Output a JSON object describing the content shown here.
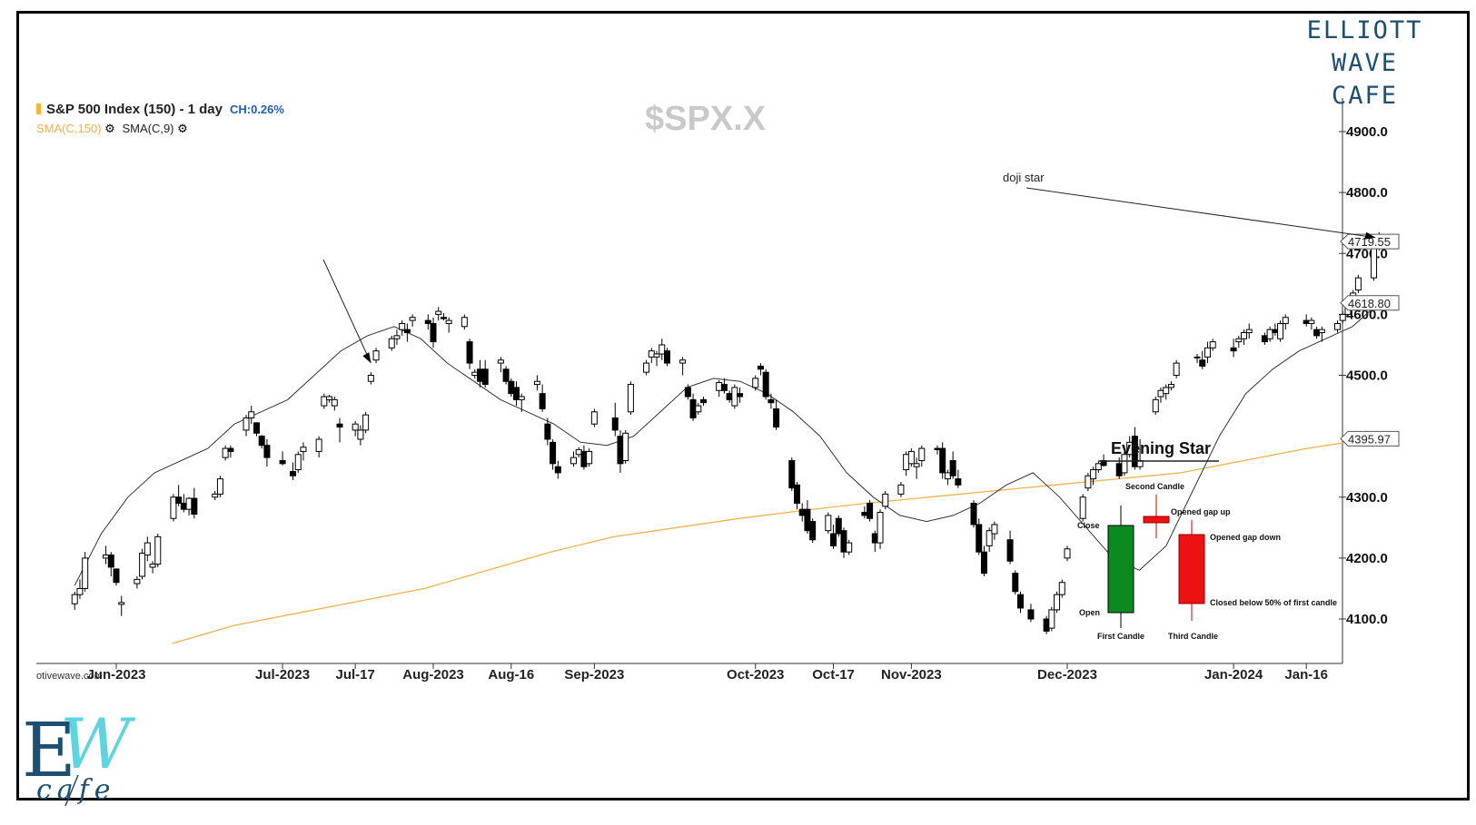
{
  "brand": {
    "line1": "ELLIOTT WAVE",
    "line2": "CAFE",
    "logo_letters": "EW",
    "logo_script": "cafe"
  },
  "header": {
    "title": "S&P 500 Index (150) - 1 day",
    "change": "CH:0.26%",
    "sma150_label": "SMA(C,150)",
    "sma9_label": "SMA(C,9)",
    "symbol": "$SPX.X",
    "settings_icon": "gear-icon"
  },
  "watermark": "otivewave.com",
  "colors": {
    "sma150": "#f2b14c",
    "sma9": "#333333",
    "bear": "#000000",
    "bull": "#ffffff",
    "inset_green": "#0b8a1e",
    "inset_red": "#ee1111",
    "brand": "#1d4f70"
  },
  "chart_data": {
    "type": "candlestick",
    "title": "S&P 500 Index (150) - 1 day",
    "y_axis": {
      "ticks": [
        4100.0,
        4200.0,
        4300.0,
        4500.0,
        4600.0,
        4700.0,
        4800.0,
        4900.0
      ],
      "tick_labels": [
        "4100.0",
        "4200.0",
        "4300.0",
        "4500.0",
        "4600.0",
        "4700.0",
        "4800.0",
        "4900.0"
      ]
    },
    "price_markers": [
      {
        "label": "4719.55",
        "value": 4719.55
      },
      {
        "label": "4618.80",
        "value": 4618.8
      },
      {
        "label": "4395.97",
        "value": 4395.97
      }
    ],
    "x_axis": {
      "labels": [
        {
          "label": "Jun-2023",
          "date": "2023-06-01"
        },
        {
          "label": "Jul-2023",
          "date": "2023-07-03"
        },
        {
          "label": "Jul-17",
          "date": "2023-07-17"
        },
        {
          "label": "Aug-2023",
          "date": "2023-08-01"
        },
        {
          "label": "Aug-16",
          "date": "2023-08-16"
        },
        {
          "label": "Sep-2023",
          "date": "2023-09-01"
        },
        {
          "label": "Oct-2023",
          "date": "2023-10-02"
        },
        {
          "label": "Oct-17",
          "date": "2023-10-17"
        },
        {
          "label": "Nov-2023",
          "date": "2023-11-01"
        },
        {
          "label": "Dec-2023",
          "date": "2023-12-01"
        },
        {
          "label": "Jan-2024",
          "date": "2024-01-02"
        },
        {
          "label": "Jan-16",
          "date": "2024-01-16"
        }
      ]
    },
    "candles_ohlc": [
      [
        "2023-05-24",
        4125,
        4145,
        4115,
        4140
      ],
      [
        "2023-05-25",
        4140,
        4165,
        4133,
        4150
      ],
      [
        "2023-05-26",
        4150,
        4210,
        4145,
        4200
      ],
      [
        "2023-05-30",
        4200,
        4220,
        4190,
        4205
      ],
      [
        "2023-05-31",
        4205,
        4210,
        4170,
        4185
      ],
      [
        "2023-06-01",
        4182,
        4183,
        4155,
        4160
      ],
      [
        "2023-06-02",
        4124,
        4138,
        4105,
        4127
      ],
      [
        "2023-06-05",
        4158,
        4170,
        4150,
        4165
      ],
      [
        "2023-06-06",
        4170,
        4215,
        4165,
        4208
      ],
      [
        "2023-06-07",
        4205,
        4235,
        4195,
        4225
      ],
      [
        "2023-06-08",
        4185,
        4195,
        4175,
        4190
      ],
      [
        "2023-06-09",
        4190,
        4240,
        4185,
        4235
      ],
      [
        "2023-06-12",
        4265,
        4305,
        4260,
        4300
      ],
      [
        "2023-06-13",
        4300,
        4320,
        4285,
        4290
      ],
      [
        "2023-06-14",
        4290,
        4305,
        4275,
        4280
      ],
      [
        "2023-06-15",
        4280,
        4300,
        4270,
        4298
      ],
      [
        "2023-06-16",
        4298,
        4315,
        4265,
        4272
      ],
      [
        "2023-06-20",
        4300,
        4310,
        4295,
        4305
      ],
      [
        "2023-06-21",
        4305,
        4335,
        4300,
        4330
      ],
      [
        "2023-06-22",
        4365,
        4385,
        4360,
        4380
      ],
      [
        "2023-06-23",
        4380,
        4385,
        4365,
        4375
      ],
      [
        "2023-06-26",
        4410,
        4435,
        4400,
        4430
      ],
      [
        "2023-06-27",
        4430,
        4450,
        4420,
        4440
      ],
      [
        "2023-06-28",
        4422,
        4423,
        4400,
        4405
      ],
      [
        "2023-06-29",
        4400,
        4402,
        4380,
        4385
      ],
      [
        "2023-06-30",
        4385,
        4395,
        4350,
        4365
      ],
      [
        "2023-07-03",
        4360,
        4375,
        4352,
        4355
      ],
      [
        "2023-07-05",
        4342,
        4357,
        4328,
        4335
      ],
      [
        "2023-07-06",
        4345,
        4375,
        4340,
        4370
      ],
      [
        "2023-07-07",
        4375,
        4390,
        4360,
        4382
      ],
      [
        "2023-07-10",
        4375,
        4400,
        4365,
        4395
      ],
      [
        "2023-07-11",
        4450,
        4470,
        4445,
        4465
      ],
      [
        "2023-07-12",
        4460,
        4468,
        4455,
        4465
      ],
      [
        "2023-07-13",
        4450,
        4465,
        4442,
        4460
      ],
      [
        "2023-07-14",
        4420,
        4430,
        4390,
        4415
      ],
      [
        "2023-07-17",
        4410,
        4425,
        4400,
        4420
      ],
      [
        "2023-07-18",
        4395,
        4418,
        4385,
        4410
      ],
      [
        "2023-07-19",
        4410,
        4440,
        4405,
        4435
      ],
      [
        "2023-07-20",
        4490,
        4505,
        4485,
        4500
      ],
      [
        "2023-07-21",
        4525,
        4545,
        4520,
        4540
      ],
      [
        "2023-07-24",
        4545,
        4565,
        4540,
        4560
      ],
      [
        "2023-07-25",
        4560,
        4575,
        4550,
        4565
      ],
      [
        "2023-07-26",
        4575,
        4590,
        4565,
        4585
      ],
      [
        "2023-07-27",
        4575,
        4585,
        4555,
        4570
      ],
      [
        "2023-07-28",
        4590,
        4600,
        4580,
        4595
      ],
      [
        "2023-07-31",
        4590,
        4600,
        4575,
        4585
      ],
      [
        "2023-08-01",
        4585,
        4595,
        4545,
        4555
      ],
      [
        "2023-08-02",
        4600,
        4612,
        4590,
        4605
      ],
      [
        "2023-08-03",
        4595,
        4602,
        4590,
        4593
      ],
      [
        "2023-08-04",
        4585,
        4595,
        4570,
        4590
      ],
      [
        "2023-08-07",
        4580,
        4600,
        4575,
        4595
      ],
      [
        "2023-08-08",
        4555,
        4560,
        4510,
        4520
      ],
      [
        "2023-08-09",
        4500,
        4510,
        4495,
        4505
      ],
      [
        "2023-08-10",
        4510,
        4525,
        4480,
        4490
      ],
      [
        "2023-08-11",
        4510,
        4525,
        4480,
        4485
      ],
      [
        "2023-08-14",
        4520,
        4530,
        4505,
        4525
      ],
      [
        "2023-08-15",
        4510,
        4515,
        4485,
        4490
      ],
      [
        "2023-08-16",
        4490,
        4495,
        4465,
        4470
      ],
      [
        "2023-08-17",
        4480,
        4490,
        4450,
        4460
      ],
      [
        "2023-08-18",
        4460,
        4470,
        4440,
        4465
      ],
      [
        "2023-08-21",
        4485,
        4500,
        4475,
        4490
      ],
      [
        "2023-08-22",
        4470,
        4485,
        4440,
        4445
      ],
      [
        "2023-08-23",
        4420,
        4430,
        4385,
        4395
      ],
      [
        "2023-08-24",
        4390,
        4395,
        4345,
        4355
      ],
      [
        "2023-08-25",
        4350,
        4360,
        4330,
        4340
      ],
      [
        "2023-08-28",
        4355,
        4375,
        4350,
        4365
      ],
      [
        "2023-08-29",
        4370,
        4382,
        4365,
        4378
      ],
      [
        "2023-08-30",
        4375,
        4385,
        4345,
        4350
      ],
      [
        "2023-08-31",
        4355,
        4380,
        4350,
        4375
      ],
      [
        "2023-09-01",
        4420,
        4445,
        4415,
        4440
      ],
      [
        "2023-09-05",
        4430,
        4455,
        4400,
        4410
      ],
      [
        "2023-09-06",
        4400,
        4410,
        4340,
        4355
      ],
      [
        "2023-09-07",
        4360,
        4410,
        4355,
        4405
      ],
      [
        "2023-09-08",
        4440,
        4490,
        4435,
        4485
      ],
      [
        "2023-09-11",
        4505,
        4525,
        4500,
        4520
      ],
      [
        "2023-09-12",
        4530,
        4545,
        4520,
        4540
      ],
      [
        "2023-09-13",
        4530,
        4540,
        4515,
        4535
      ],
      [
        "2023-09-14",
        4535,
        4560,
        4525,
        4550
      ],
      [
        "2023-09-15",
        4540,
        4545,
        4515,
        4520
      ],
      [
        "2023-09-18",
        4520,
        4530,
        4500,
        4525
      ],
      [
        "2023-09-19",
        4480,
        4485,
        4460,
        4465
      ],
      [
        "2023-09-20",
        4460,
        4470,
        4425,
        4430
      ],
      [
        "2023-09-21",
        4440,
        4455,
        4435,
        4450
      ],
      [
        "2023-09-22",
        4460,
        4465,
        4450,
        4455
      ],
      [
        "2023-09-25",
        4475,
        4492,
        4465,
        4488
      ],
      [
        "2023-09-26",
        4485,
        4495,
        4470,
        4475
      ],
      [
        "2023-09-27",
        4470,
        4475,
        4455,
        4460
      ],
      [
        "2023-09-28",
        4450,
        4485,
        4445,
        4480
      ],
      [
        "2023-09-29",
        4470,
        4480,
        4455,
        4465
      ],
      [
        "2023-10-02",
        4480,
        4500,
        4475,
        4495
      ],
      [
        "2023-10-03",
        4515,
        4520,
        4500,
        4510
      ],
      [
        "2023-10-04",
        4505,
        4510,
        4460,
        4465
      ],
      [
        "2023-10-05",
        4460,
        4470,
        4445,
        4455
      ],
      [
        "2023-10-06",
        4445,
        4460,
        4410,
        4415
      ],
      [
        "2023-10-09",
        4360,
        4365,
        4310,
        4315
      ],
      [
        "2023-10-10",
        4320,
        4325,
        4280,
        4290
      ],
      [
        "2023-10-11",
        4280,
        4290,
        4260,
        4270
      ],
      [
        "2023-10-12",
        4280,
        4295,
        4240,
        4245
      ],
      [
        "2023-10-13",
        4260,
        4265,
        4225,
        4230
      ],
      [
        "2023-10-16",
        4245,
        4275,
        4240,
        4270
      ],
      [
        "2023-10-17",
        4240,
        4255,
        4215,
        4220
      ],
      [
        "2023-10-18",
        4265,
        4270,
        4235,
        4240
      ],
      [
        "2023-10-19",
        4245,
        4250,
        4200,
        4210
      ],
      [
        "2023-10-20",
        4210,
        4230,
        4205,
        4225
      ],
      [
        "2023-10-23",
        4275,
        4285,
        4265,
        4270
      ],
      [
        "2023-10-24",
        4290,
        4295,
        4260,
        4265
      ],
      [
        "2023-10-25",
        4240,
        4245,
        4210,
        4225
      ],
      [
        "2023-10-26",
        4225,
        4280,
        4215,
        4275
      ],
      [
        "2023-10-27",
        4285,
        4310,
        4280,
        4305
      ],
      [
        "2023-10-30",
        4305,
        4325,
        4300,
        4320
      ],
      [
        "2023-10-31",
        4345,
        4375,
        4335,
        4370
      ],
      [
        "2023-11-01",
        4355,
        4380,
        4350,
        4375
      ],
      [
        "2023-11-02",
        4350,
        4365,
        4330,
        4355
      ],
      [
        "2023-11-03",
        4360,
        4385,
        4350,
        4380
      ],
      [
        "2023-11-06",
        4380,
        4385,
        4370,
        4378
      ],
      [
        "2023-11-07",
        4380,
        4390,
        4330,
        4340
      ],
      [
        "2023-11-08",
        4330,
        4345,
        4320,
        4340
      ],
      [
        "2023-11-09",
        4360,
        4375,
        4330,
        4335
      ],
      [
        "2023-11-10",
        4330,
        4345,
        4315,
        4320
      ],
      [
        "2023-11-13",
        4290,
        4295,
        4250,
        4255
      ],
      [
        "2023-11-14",
        4255,
        4265,
        4205,
        4210
      ],
      [
        "2023-11-15",
        4210,
        4220,
        4170,
        4175
      ],
      [
        "2023-11-16",
        4220,
        4250,
        4210,
        4245
      ],
      [
        "2023-11-17",
        4240,
        4260,
        4230,
        4255
      ],
      [
        "2023-11-20",
        4230,
        4245,
        4190,
        4195
      ],
      [
        "2023-11-21",
        4175,
        4180,
        4140,
        4145
      ],
      [
        "2023-11-22",
        4140,
        4145,
        4110,
        4118
      ],
      [
        "2023-11-24",
        4115,
        4125,
        4095,
        4100
      ],
      [
        "2023-11-27",
        4100,
        4105,
        4075,
        4080
      ],
      [
        "2023-11-28",
        4085,
        4120,
        4080,
        4115
      ],
      [
        "2023-11-29",
        4115,
        4145,
        4110,
        4140
      ],
      [
        "2023-11-30",
        4140,
        4165,
        4135,
        4160
      ],
      [
        "2023-12-01",
        4200,
        4220,
        4195,
        4215
      ],
      [
        "2023-12-04",
        4265,
        4305,
        4260,
        4300
      ],
      [
        "2023-12-05",
        4315,
        4340,
        4310,
        4335
      ],
      [
        "2023-12-06",
        4330,
        4350,
        4320,
        4345
      ],
      [
        "2023-12-07",
        4345,
        4360,
        4340,
        4355
      ],
      [
        "2023-12-08",
        4360,
        4370,
        4350,
        4352
      ],
      [
        "2023-12-11",
        4355,
        4365,
        4330,
        4335
      ],
      [
        "2023-12-12",
        4340,
        4375,
        4335,
        4370
      ],
      [
        "2023-12-13",
        4370,
        4400,
        4365,
        4390
      ],
      [
        "2023-12-14",
        4400,
        4415,
        4345,
        4350
      ],
      [
        "2023-12-15",
        4350,
        4395,
        4345,
        4360
      ],
      [
        "2023-12-18",
        4440,
        4465,
        4435,
        4460
      ],
      [
        "2023-12-19",
        4465,
        4480,
        4455,
        4475
      ],
      [
        "2023-12-20",
        4470,
        4485,
        4460,
        4480
      ],
      [
        "2023-12-21",
        4480,
        4490,
        4475,
        4485
      ],
      [
        "2023-12-22",
        4500,
        4525,
        4495,
        4520
      ],
      [
        "2023-12-26",
        4530,
        4535,
        4520,
        4530
      ],
      [
        "2023-12-27",
        4525,
        4540,
        4510,
        4515
      ],
      [
        "2023-12-28",
        4530,
        4555,
        4520,
        4545
      ],
      [
        "2023-12-29",
        4545,
        4560,
        4540,
        4555
      ],
      [
        "2024-01-02",
        4545,
        4560,
        4530,
        4540
      ],
      [
        "2024-01-03",
        4555,
        4565,
        4545,
        4560
      ],
      [
        "2024-01-04",
        4560,
        4575,
        4550,
        4570
      ],
      [
        "2024-01-05",
        4570,
        4585,
        4560,
        4575
      ],
      [
        "2024-01-08",
        4565,
        4570,
        4550,
        4555
      ],
      [
        "2024-01-09",
        4560,
        4580,
        4555,
        4575
      ],
      [
        "2024-01-10",
        4575,
        4585,
        4565,
        4570
      ],
      [
        "2024-01-11",
        4560,
        4590,
        4555,
        4585
      ],
      [
        "2024-01-12",
        4585,
        4600,
        4575,
        4595
      ],
      [
        "2024-01-16",
        4590,
        4600,
        4580,
        4585
      ],
      [
        "2024-01-17",
        4585,
        4595,
        4575,
        4590
      ],
      [
        "2024-01-18",
        4575,
        4580,
        4560,
        4565
      ],
      [
        "2024-01-19",
        4570,
        4580,
        4555,
        4575
      ],
      [
        "2024-01-22",
        4575,
        4590,
        4570,
        4585
      ],
      [
        "2024-01-23",
        4590,
        4605,
        4585,
        4600
      ],
      [
        "2024-01-24",
        4600,
        4620,
        4595,
        4615
      ],
      [
        "2024-01-25",
        4615,
        4640,
        4610,
        4635
      ],
      [
        "2024-01-26",
        4640,
        4665,
        4635,
        4660
      ],
      [
        "2024-01-29",
        4660,
        4720,
        4655,
        4715
      ],
      [
        "2024-01-30",
        4720,
        4735,
        4705,
        4719.55
      ]
    ],
    "sma9": [
      4155,
      4240,
      4300,
      4340,
      4360,
      4380,
      4420,
      4440,
      4460,
      4500,
      4540,
      4565,
      4580,
      4560,
      4520,
      4490,
      4460,
      4440,
      4420,
      4390,
      4385,
      4400,
      4440,
      4480,
      4495,
      4490,
      4470,
      4440,
      4400,
      4340,
      4300,
      4270,
      4260,
      4270,
      4290,
      4320,
      4340,
      4300,
      4250,
      4200,
      4180,
      4220,
      4310,
      4400,
      4470,
      4510,
      4540,
      4560,
      4580,
      4618.8
    ],
    "sma150": [
      4060,
      4090,
      4110,
      4130,
      4150,
      4180,
      4210,
      4235,
      4250,
      4265,
      4278,
      4290,
      4300,
      4310,
      4320,
      4330,
      4340,
      4360,
      4380,
      4395.97
    ],
    "annotations": [
      {
        "text": "doji star"
      }
    ],
    "inset": {
      "title": "Evening Star",
      "labels": {
        "second_candle": "Second Candle",
        "opened_gap_up": "Opened gap up",
        "opened_gap_down": "Opened gap down",
        "close": "Close",
        "open": "Open",
        "closed_below": "Closed  below 50% of first candle",
        "first_candle": "First Candle",
        "third_candle": "Third Candle"
      }
    }
  }
}
